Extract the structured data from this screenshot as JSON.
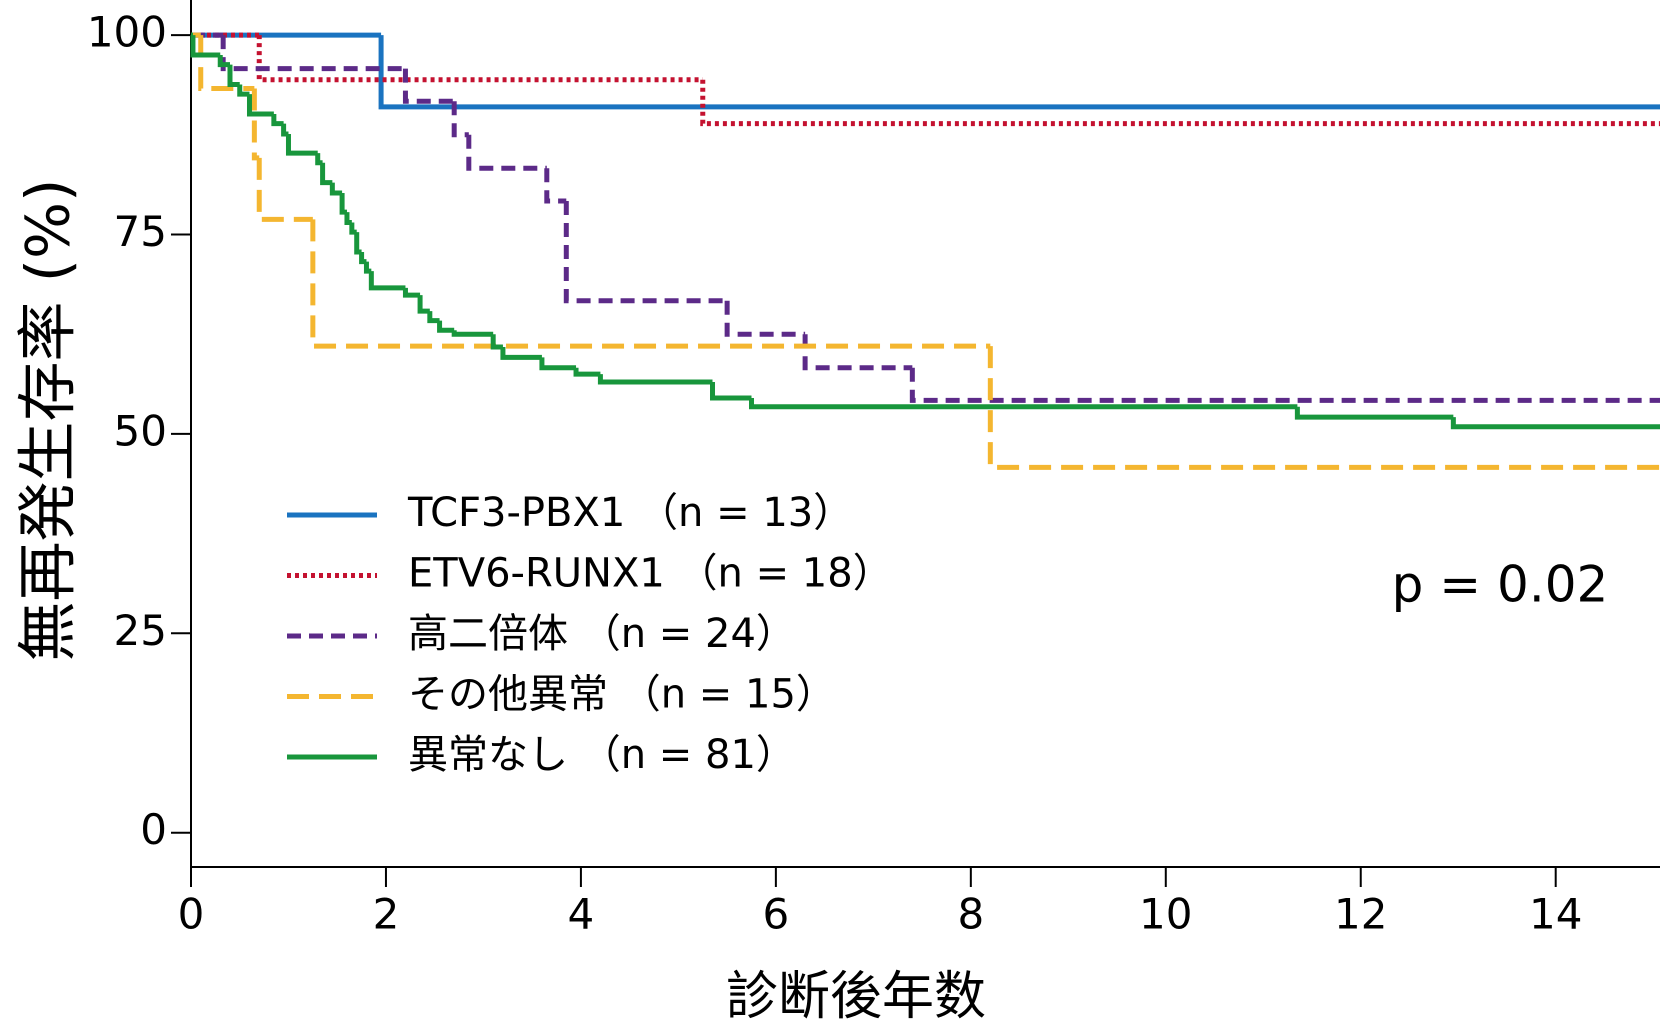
{
  "chart_data": {
    "type": "step",
    "y_label": "無再発生存率 (%)",
    "x_label": "診断後年数",
    "annotation": "p = 0.02",
    "xlim": [
      0,
      15.07
    ],
    "ylim": [
      -4.3,
      104.4
    ],
    "xticks": [
      0,
      2,
      4,
      6,
      8,
      10,
      12,
      14
    ],
    "yticks": [
      0,
      25,
      50,
      75,
      100
    ],
    "series": [
      {
        "name": "TCF3-PBX1 （n = 13）",
        "color": "#1a73c0",
        "dash": "solid",
        "x": [
          0,
          1.95
        ],
        "values": [
          100,
          91
        ]
      },
      {
        "name": "ETV6-RUNX1 （n = 18）",
        "color": "#c41230",
        "dash": "dotted",
        "x": [
          0,
          0.7,
          5.25
        ],
        "values": [
          100,
          94.4,
          88.9
        ]
      },
      {
        "name": "高二倍体 （n = 24）",
        "color": "#5c2a88",
        "dash": "dashed",
        "x": [
          0,
          0.33,
          2.2,
          2.7,
          2.85,
          3.65,
          3.85,
          5.5,
          6.3,
          7.4
        ],
        "values": [
          100,
          95.8,
          91.7,
          87.5,
          83.3,
          79.2,
          66.7,
          62.5,
          58.3,
          54.2
        ]
      },
      {
        "name": "その他異常 （n = 15）",
        "color": "#f4b630",
        "dash": "longdash",
        "x": [
          0,
          0.1,
          0.65,
          0.7,
          1.25,
          8.2
        ],
        "values": [
          100,
          93.3,
          84.6,
          76.9,
          61.0,
          45.8
        ]
      },
      {
        "name": "異常なし （n = 81）",
        "color": "#18963c",
        "dash": "solid",
        "x": [
          0,
          0.02,
          0.3,
          0.4,
          0.5,
          0.6,
          0.85,
          0.95,
          1.0,
          1.3,
          1.35,
          1.45,
          1.55,
          1.6,
          1.65,
          1.7,
          1.75,
          1.8,
          1.85,
          2.2,
          2.35,
          2.45,
          2.55,
          2.7,
          3.1,
          3.2,
          3.6,
          3.95,
          4.2,
          5.35,
          5.75,
          11.35,
          12.95
        ],
        "values": [
          100,
          97.5,
          96.3,
          93.8,
          92.6,
          90.1,
          88.9,
          87.6,
          85.2,
          84.0,
          81.5,
          80.2,
          77.8,
          76.5,
          75.3,
          72.8,
          71.6,
          70.4,
          68.3,
          67.4,
          65.4,
          64.2,
          63.0,
          62.5,
          60.9,
          59.6,
          58.3,
          57.5,
          56.5,
          54.5,
          53.4,
          52.1,
          50.9
        ]
      }
    ]
  }
}
